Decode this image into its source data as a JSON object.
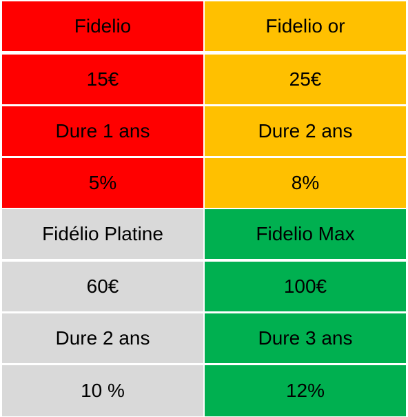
{
  "colors": {
    "fidelio": "#ff0000",
    "fidelio_or": "#ffc000",
    "fidelio_platine": "#d9d9d9",
    "fidelio_max": "#00b050"
  },
  "plans": [
    {
      "key": "fidelio",
      "name": "Fidelio",
      "price": "15€",
      "duration": "Dure 1 ans",
      "rate": "5%"
    },
    {
      "key": "fidelio_or",
      "name": "Fidelio or",
      "price": "25€",
      "duration": "Dure 2 ans",
      "rate": "8%"
    },
    {
      "key": "fidelio_platine",
      "name": "Fidélio Platine",
      "price": "60€",
      "duration": "Dure 2 ans",
      "rate": "10 %"
    },
    {
      "key": "fidelio_max",
      "name": "Fidelio Max",
      "price": "100€",
      "duration": "Dure 3 ans",
      "rate": "12%"
    }
  ]
}
